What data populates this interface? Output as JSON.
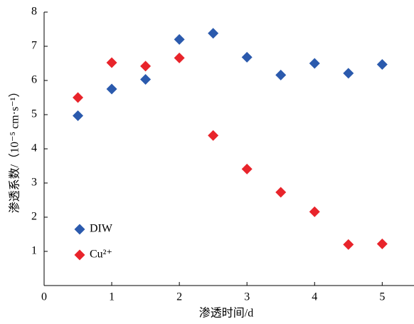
{
  "chart_data": {
    "type": "scatter",
    "xlabel": "渗透时间/d",
    "ylabel": "渗透系数/（10⁻⁵ cm·s⁻¹）",
    "x": [
      0.5,
      1,
      1.5,
      2,
      2.5,
      3,
      3.5,
      4,
      4.5,
      5
    ],
    "series": [
      {
        "name": "DIW",
        "color": "#2b5aad",
        "values": [
          4.97,
          5.75,
          6.03,
          7.2,
          7.38,
          6.68,
          6.16,
          6.5,
          6.21,
          6.47
        ]
      },
      {
        "name": "Cu²⁺",
        "color": "#e8242b",
        "values": [
          5.5,
          6.52,
          6.42,
          6.66,
          4.39,
          3.41,
          2.73,
          2.16,
          1.2,
          1.22
        ]
      }
    ],
    "xlim": [
      0,
      5.47
    ],
    "xticks": [
      0,
      1,
      2,
      3,
      4,
      5
    ],
    "ylim": [
      0,
      8
    ],
    "yticks": [
      1,
      2,
      3,
      4,
      5,
      6,
      7,
      8
    ],
    "legend": "lower left"
  }
}
